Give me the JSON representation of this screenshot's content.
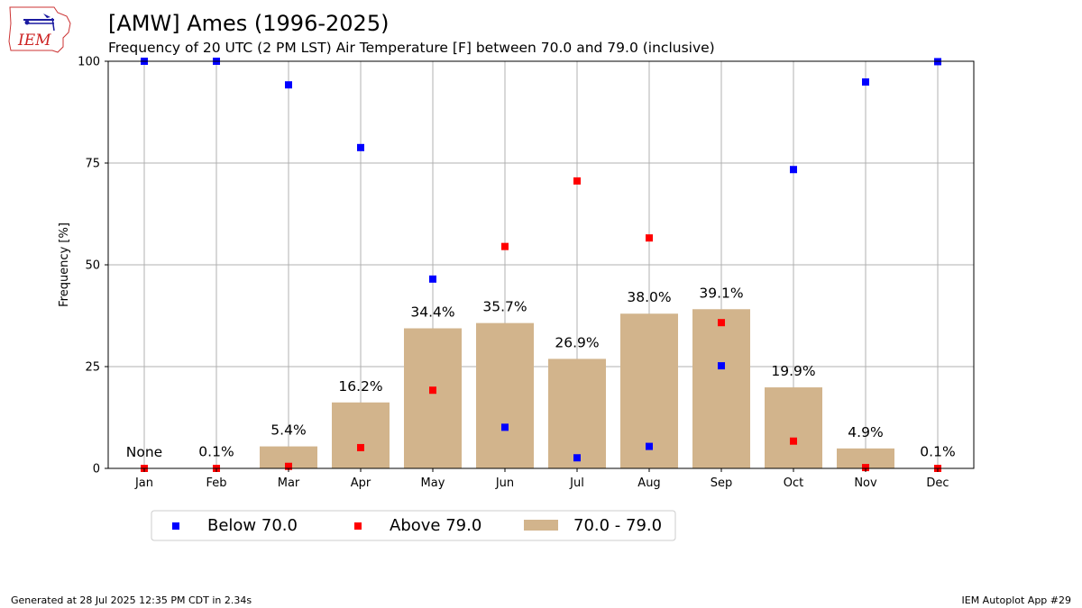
{
  "header": {
    "title": "[AMW] Ames (1996-2025)",
    "subtitle": "Frequency of 20 UTC (2 PM LST) Air Temperature [F] between 70.0 and 79.0 (inclusive)"
  },
  "logo": {
    "text": "IEM",
    "icon": "iem-iowa-logo-icon"
  },
  "footer": {
    "left": "Generated at 28 Jul 2025 12:35 PM CDT in 2.34s",
    "right": "IEM Autoplot App #29"
  },
  "colors": {
    "bar": "#d2b48c",
    "below": "#0000ff",
    "above": "#ff0000",
    "grid": "#b0b0b0"
  },
  "chart_data": {
    "type": "bar",
    "categories": [
      "Jan",
      "Feb",
      "Mar",
      "Apr",
      "May",
      "Jun",
      "Jul",
      "Aug",
      "Sep",
      "Oct",
      "Nov",
      "Dec"
    ],
    "ylabel": "Frequency [%]",
    "ylim": [
      0,
      100
    ],
    "yticks": [
      0,
      25,
      50,
      75,
      100
    ],
    "grid": true,
    "legend_position": "bottom-left",
    "series": [
      {
        "name": "70.0 - 79.0",
        "type": "bar",
        "values": [
          0,
          0.1,
          5.4,
          16.2,
          34.4,
          35.7,
          26.9,
          38.0,
          39.1,
          19.9,
          4.9,
          0.1
        ],
        "labels": [
          "None",
          "0.1%",
          "5.4%",
          "16.2%",
          "34.4%",
          "35.7%",
          "26.9%",
          "38.0%",
          "39.1%",
          "19.9%",
          "4.9%",
          "0.1%"
        ]
      },
      {
        "name": "Below 70.0",
        "type": "scatter",
        "values": [
          100,
          100,
          94.2,
          78.8,
          46.5,
          10.1,
          2.6,
          5.4,
          25.2,
          73.4,
          94.9,
          99.9
        ]
      },
      {
        "name": "Above 79.0",
        "type": "scatter",
        "values": [
          0,
          0,
          0.5,
          5.1,
          19.2,
          54.5,
          70.6,
          56.6,
          35.8,
          6.7,
          0.2,
          0
        ]
      }
    ]
  }
}
